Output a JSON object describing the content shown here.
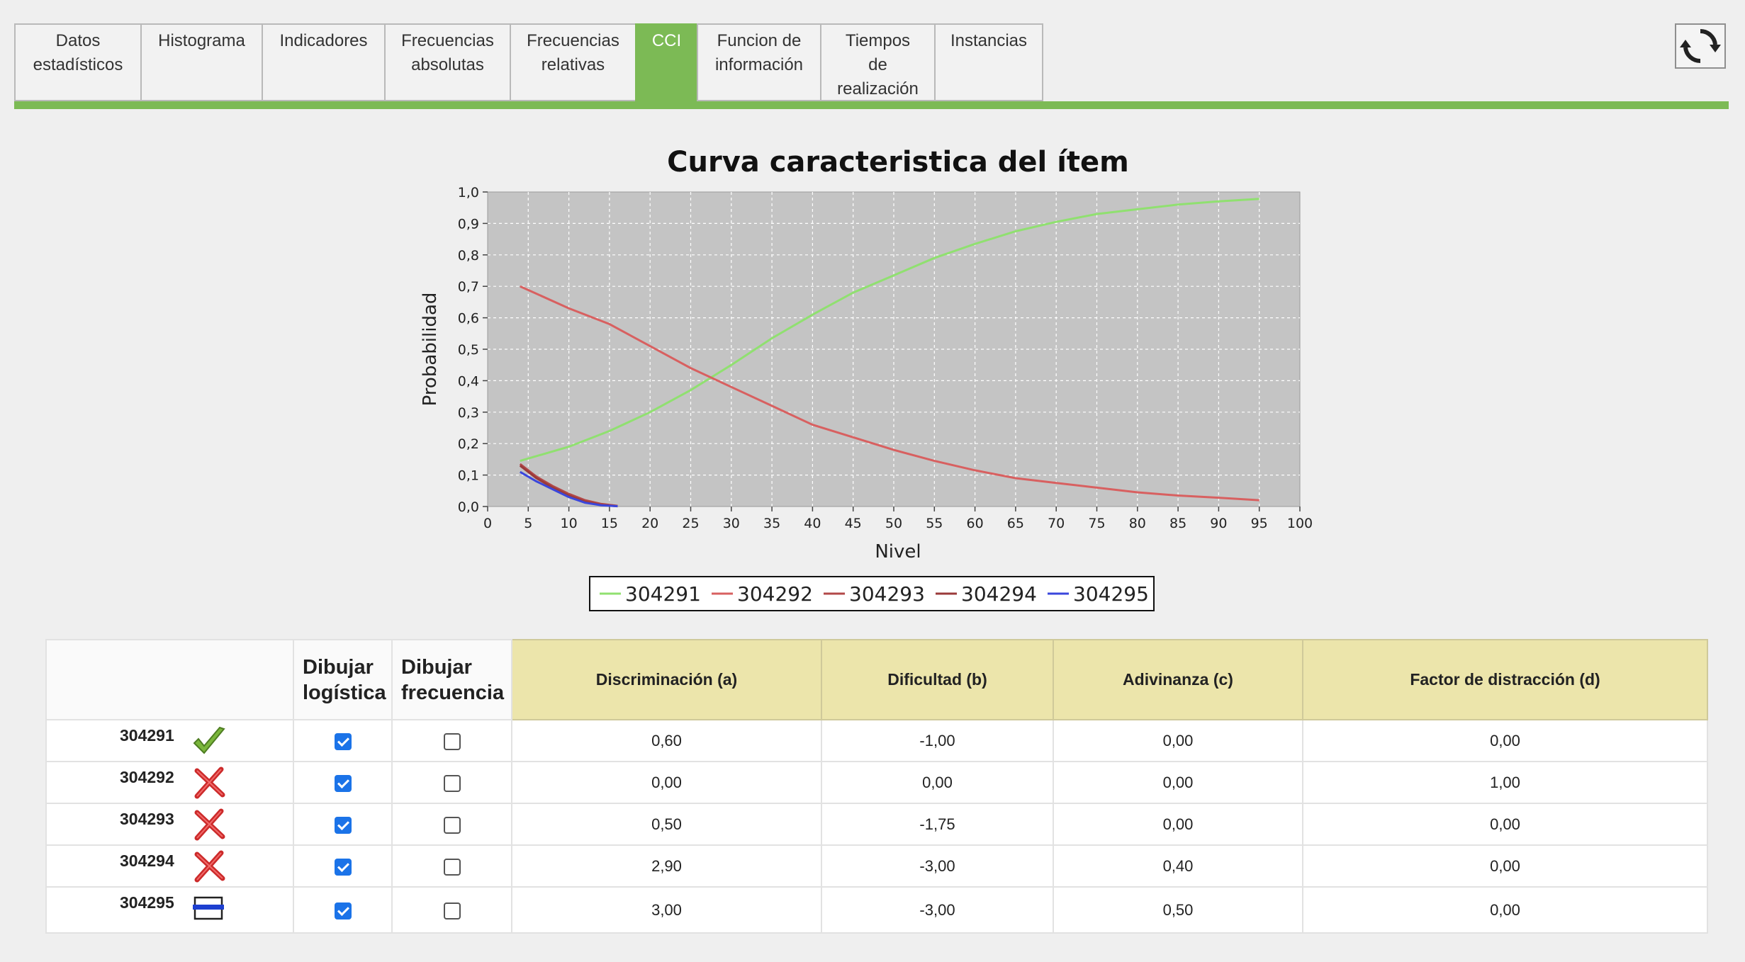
{
  "tabs": [
    {
      "label": "Datos\nestadísticos",
      "active": false
    },
    {
      "label": "Histograma",
      "active": false
    },
    {
      "label": "Indicadores",
      "active": false
    },
    {
      "label": "Frecuencias\nabsolutas",
      "active": false
    },
    {
      "label": "Frecuencias\nrelativas",
      "active": false
    },
    {
      "label": "CCI",
      "active": true
    },
    {
      "label": "Funcion de\ninformación",
      "active": false
    },
    {
      "label": "Tiempos\nde\nrealización",
      "active": false
    },
    {
      "label": "Instancias",
      "active": false
    }
  ],
  "refresh_icon": "refresh-icon",
  "chart_data": {
    "type": "line",
    "title": "Curva caracteristica del ítem",
    "xlabel": "Nivel",
    "ylabel": "Probabilidad",
    "xlim": [
      0,
      100
    ],
    "ylim": [
      0,
      1
    ],
    "x_ticks": [
      "0",
      "5",
      "10",
      "15",
      "20",
      "25",
      "30",
      "35",
      "40",
      "45",
      "50",
      "55",
      "60",
      "65",
      "70",
      "75",
      "80",
      "85",
      "90",
      "95",
      "100"
    ],
    "y_ticks": [
      "0,0",
      "0,1",
      "0,2",
      "0,3",
      "0,4",
      "0,5",
      "0,6",
      "0,7",
      "0,8",
      "0,9",
      "1,0"
    ],
    "grid": true,
    "legend": "bottom",
    "series": [
      {
        "name": "304291",
        "color": "#90e070",
        "x": [
          4,
          10,
          15,
          20,
          25,
          30,
          35,
          40,
          45,
          50,
          55,
          60,
          65,
          70,
          75,
          80,
          85,
          90,
          95
        ],
        "y": [
          0.145,
          0.19,
          0.24,
          0.3,
          0.37,
          0.45,
          0.535,
          0.61,
          0.68,
          0.735,
          0.79,
          0.835,
          0.875,
          0.905,
          0.93,
          0.945,
          0.96,
          0.97,
          0.978
        ]
      },
      {
        "name": "304292",
        "color": "#d86060",
        "x": [
          4,
          10,
          15,
          20,
          25,
          30,
          35,
          40,
          45,
          50,
          55,
          60,
          65,
          70,
          75,
          80,
          85,
          90,
          95
        ],
        "y": [
          0.7,
          0.63,
          0.58,
          0.51,
          0.44,
          0.38,
          0.32,
          0.26,
          0.22,
          0.18,
          0.145,
          0.115,
          0.09,
          0.075,
          0.06,
          0.045,
          0.035,
          0.028,
          0.02
        ]
      },
      {
        "name": "304293",
        "color": "#b24848",
        "x": [
          4,
          6,
          8,
          10,
          12,
          14,
          16
        ],
        "y": [
          0.135,
          0.095,
          0.065,
          0.04,
          0.02,
          0.008,
          0.002
        ]
      },
      {
        "name": "304294",
        "color": "#9a3a3a",
        "x": [
          4,
          6,
          8,
          10,
          12,
          14,
          16
        ],
        "y": [
          0.13,
          0.09,
          0.06,
          0.035,
          0.015,
          0.005,
          0.001
        ]
      },
      {
        "name": "304295",
        "color": "#3a46dc",
        "x": [
          4,
          6,
          8,
          10,
          12,
          14,
          16
        ],
        "y": [
          0.11,
          0.08,
          0.055,
          0.03,
          0.012,
          0.004,
          0.001
        ]
      }
    ]
  },
  "table": {
    "headers": {
      "draw_logistic": "Dibujar\nlogística",
      "draw_frequency": "Dibujar\nfrecuencia",
      "a": "Discriminación (a)",
      "b": "Dificultad (b)",
      "c": "Adivinanza (c)",
      "d": "Factor de distracción (d)"
    },
    "rows": [
      {
        "id": "304291",
        "icon": "check-icon",
        "logistic": true,
        "frequency": false,
        "a": "0,60",
        "b": "-1,00",
        "c": "0,00",
        "d": "0,00"
      },
      {
        "id": "304292",
        "icon": "cross-icon",
        "logistic": true,
        "frequency": false,
        "a": "0,00",
        "b": "0,00",
        "c": "0,00",
        "d": "1,00"
      },
      {
        "id": "304293",
        "icon": "cross-icon",
        "logistic": true,
        "frequency": false,
        "a": "0,50",
        "b": "-1,75",
        "c": "0,00",
        "d": "0,00"
      },
      {
        "id": "304294",
        "icon": "cross-icon",
        "logistic": true,
        "frequency": false,
        "a": "2,90",
        "b": "-3,00",
        "c": "0,40",
        "d": "0,00"
      },
      {
        "id": "304295",
        "icon": "blank-answer-icon",
        "logistic": true,
        "frequency": false,
        "a": "3,00",
        "b": "-3,00",
        "c": "0,50",
        "d": "0,00"
      }
    ]
  }
}
